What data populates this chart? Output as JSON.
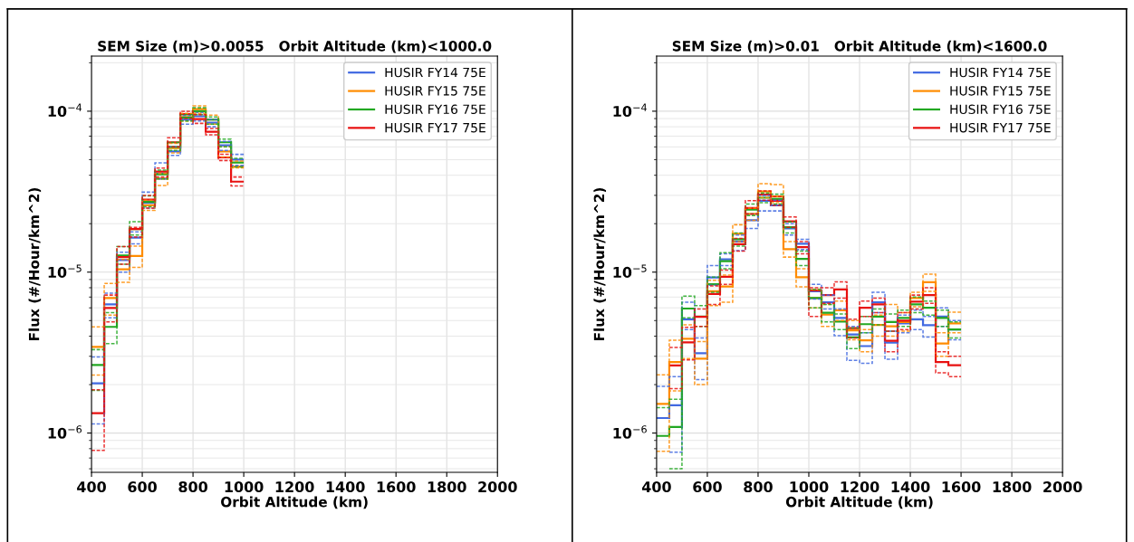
{
  "chart_data": [
    {
      "type": "step",
      "title": "SEM Size (m)>0.0055   Orbit Altitude (km)<1000.0",
      "xlabel": "Orbit Altitude (km)",
      "ylabel": "Flux (#/Hour/km^2)",
      "x": [
        400,
        450,
        500,
        550,
        600,
        650,
        700,
        750,
        800,
        850,
        900,
        950,
        1000
      ],
      "series": [
        {
          "name": "HUSIR FY14 75E",
          "color": "#4169e1",
          "line_style": "solid",
          "values": [
            2.04e-06,
            6.3e-06,
            1.19e-05,
            1.64e-05,
            2.7e-05,
            4.1e-05,
            5.62e-05,
            8.86e-05,
            9.3e-05,
            8.48e-05,
            6.14e-05,
            5e-05,
            5e-05
          ]
        },
        {
          "name": "HUSIR FY15 75E",
          "color": "#ff8c00",
          "line_style": "solid",
          "values": [
            3.43e-06,
            6.9e-06,
            1.04e-05,
            1.26e-05,
            2.6e-05,
            3.81e-05,
            5.9e-05,
            9.2e-05,
            0.000103,
            8.86e-05,
            5.62e-05,
            4.53e-05,
            4.53e-05
          ]
        },
        {
          "name": "HUSIR FY16 75E",
          "color": "#22a822",
          "line_style": "solid",
          "values": [
            2.65e-06,
            4.57e-06,
            1.27e-05,
            1.85e-05,
            2.73e-05,
            4.05e-05,
            6e-05,
            9.1e-05,
            0.0001,
            8.86e-05,
            6.41e-05,
            4.8e-05,
            4.8e-05
          ]
        },
        {
          "name": "HUSIR FY17 75E",
          "color": "#e81010",
          "line_style": "solid",
          "values": [
            1.33e-06,
            5.98e-06,
            1.24e-05,
            1.85e-05,
            2.82e-05,
            4.21e-05,
            6.41e-05,
            9.58e-05,
            8.94e-05,
            7.45e-05,
            5.16e-05,
            3.65e-05,
            3.65e-05
          ]
        },
        {
          "color": "#4169e1",
          "line_style": "dashed",
          "values": [
            1.14e-06,
            5.2e-06,
            1e-05,
            1.5e-05,
            2.5e-05,
            3.8e-05,
            5.32e-05,
            8.3e-05,
            8.7e-05,
            8e-05,
            5.7e-05,
            4.6e-05,
            4.6e-05
          ]
        },
        {
          "color": "#4169e1",
          "line_style": "dashed",
          "values": [
            2.97e-06,
            7.4e-06,
            1.33e-05,
            1.78e-05,
            3.14e-05,
            4.77e-05,
            6e-05,
            9.4e-05,
            9.8e-05,
            8.9e-05,
            6.5e-05,
            5.39e-05,
            5.39e-05
          ]
        },
        {
          "color": "#ff8c00",
          "line_style": "dashed",
          "values": [
            2.29e-06,
            5.4e-06,
            8.65e-06,
            1.07e-05,
            2.42e-05,
            3.45e-05,
            5.5e-05,
            8.7e-05,
            9.7e-05,
            8.3e-05,
            5.2e-05,
            4.45e-05,
            4.45e-05
          ]
        },
        {
          "color": "#ff8c00",
          "line_style": "dashed",
          "values": [
            4.57e-06,
            8.5e-06,
            1.2e-05,
            1.45e-05,
            2.8e-05,
            4.1e-05,
            6.3e-05,
            9.7e-05,
            0.000108,
            9.45e-05,
            6e-05,
            4.9e-05,
            4.9e-05
          ]
        },
        {
          "color": "#22a822",
          "line_style": "dashed",
          "values": [
            1.84e-06,
            3.6e-06,
            1.12e-05,
            1.7e-05,
            2.55e-05,
            3.8e-05,
            5.7e-05,
            8.7e-05,
            9.5e-05,
            8.3e-05,
            6e-05,
            4.5e-05,
            4.5e-05
          ]
        },
        {
          "color": "#22a822",
          "line_style": "dashed",
          "values": [
            3.3e-06,
            5.6e-06,
            1.44e-05,
            2.06e-05,
            2.98e-05,
            4.3e-05,
            6.4e-05,
            9.5e-05,
            0.000105,
            9.2e-05,
            6.7e-05,
            5.1e-05,
            5.1e-05
          ]
        },
        {
          "color": "#e81010",
          "line_style": "dashed",
          "values": [
            7.8e-07,
            4.9e-06,
            1.12e-05,
            1.65e-05,
            2.5e-05,
            3.9e-05,
            6e-05,
            9e-05,
            8.4e-05,
            7.14e-05,
            4.94e-05,
            3.43e-05,
            3.43e-05
          ]
        },
        {
          "color": "#e81010",
          "line_style": "dashed",
          "values": [
            1.86e-06,
            7.2e-06,
            1.44e-05,
            1.9e-05,
            3e-05,
            4.43e-05,
            6.84e-05,
            0.0001,
            9.5e-05,
            7.8e-05,
            5.4e-05,
            3.9e-05,
            3.9e-05
          ]
        }
      ],
      "xlim": [
        400,
        2000
      ],
      "xticks": [
        400,
        600,
        800,
        1000,
        1200,
        1400,
        1600,
        1800,
        2000
      ],
      "ylim": [
        5.7e-07,
        0.00022
      ],
      "yticks": [
        {
          "value": 1e-06,
          "label": "10$^{−6}$"
        },
        {
          "value": 1e-05,
          "label": "10$^{−5}$"
        },
        {
          "value": 0.0001,
          "label": "10$^{−4}$"
        }
      ],
      "log": "y",
      "grid": true,
      "legend": "top right"
    },
    {
      "type": "step",
      "title": "SEM Size (m)>0.01   Orbit Altitude (km)<1600.0",
      "xlabel": "Orbit Altitude (km)",
      "ylabel": "Flux (#/Hour/km^2)",
      "x": [
        400,
        450,
        500,
        550,
        600,
        650,
        700,
        750,
        800,
        850,
        900,
        950,
        1000,
        1050,
        1100,
        1150,
        1200,
        1250,
        1300,
        1350,
        1400,
        1450,
        1500,
        1550,
        1600
      ],
      "series": [
        {
          "name": "HUSIR FY14 75E",
          "color": "#4169e1",
          "line_style": "solid",
          "values": [
            1.24e-06,
            1.49e-06,
            5.1e-06,
            3.13e-06,
            9.27e-06,
            1.2e-05,
            1.55e-05,
            2.1e-05,
            2.78e-05,
            2.6e-05,
            1.87e-05,
            1.5e-05,
            7.6e-06,
            6.5e-06,
            5.2e-06,
            4.1e-06,
            3.47e-06,
            6.5e-06,
            3.65e-06,
            4.8e-06,
            5.1e-06,
            4.68e-06,
            5.3e-06,
            4.4e-06,
            4.4e-06
          ]
        },
        {
          "name": "HUSIR FY15 75E",
          "color": "#ff8c00",
          "line_style": "solid",
          "values": [
            1.52e-06,
            2.76e-06,
            3.85e-06,
            2.9e-06,
            7.6e-06,
            8.15e-06,
            1.73e-05,
            2.3e-05,
            3.17e-05,
            2.95e-05,
            1.39e-05,
            9.3e-06,
            6.9e-06,
            5.45e-06,
            5.8e-06,
            4.35e-06,
            3.77e-06,
            4.7e-06,
            4.6e-06,
            4.9e-06,
            6.9e-06,
            8.65e-06,
            3.6e-06,
            4.8e-06,
            4.8e-06
          ]
        },
        {
          "name": "HUSIR FY16 75E",
          "color": "#22a822",
          "line_style": "solid",
          "values": [
            9.6e-07,
            1.09e-06,
            5.94e-06,
            5.3e-06,
            8.4e-06,
            1.17e-05,
            1.6e-05,
            2.45e-05,
            2.9e-05,
            2.85e-05,
            1.9e-05,
            1.21e-05,
            6.9e-06,
            5.6e-06,
            4.93e-06,
            3.93e-06,
            4.75e-06,
            5.3e-06,
            4.9e-06,
            5.2e-06,
            6.3e-06,
            6e-06,
            5.2e-06,
            4.4e-06,
            4.4e-06
          ]
        },
        {
          "name": "HUSIR FY17 75E",
          "color": "#e81010",
          "line_style": "solid",
          "values": [
            null,
            2.63e-06,
            3.66e-06,
            5.28e-06,
            7.31e-06,
            9.35e-06,
            1.49e-05,
            2.5e-05,
            3.03e-05,
            2.78e-05,
            2.07e-05,
            1.43e-05,
            7.7e-06,
            7.2e-06,
            7.8e-06,
            4.49e-06,
            6e-06,
            6.3e-06,
            3.74e-06,
            5e-06,
            6.56e-06,
            7.2e-06,
            2.76e-06,
            2.64e-06,
            2.64e-06
          ]
        },
        {
          "color": "#4169e1",
          "line_style": "dashed",
          "values": [
            null,
            7.6e-07,
            4.4e-06,
            2.15e-06,
            8.3e-06,
            1.1e-05,
            1.36e-05,
            1.87e-05,
            2.4e-05,
            2.4e-05,
            1.7e-05,
            1.38e-05,
            6.8e-06,
            5.9e-06,
            4.03e-06,
            2.83e-06,
            2.71e-06,
            5.6e-06,
            2.88e-06,
            4.2e-06,
            4.4e-06,
            3.95e-06,
            4.6e-06,
            3.8e-06,
            3.8e-06
          ]
        },
        {
          "color": "#4169e1",
          "line_style": "dashed",
          "values": [
            1.95e-06,
            2.24e-06,
            6.5e-06,
            3.9e-06,
            1.1e-05,
            1.3e-05,
            1.7e-05,
            2.3e-05,
            3e-05,
            2.8e-05,
            2e-05,
            1.6e-05,
            8.4e-06,
            7.2e-06,
            5.9e-06,
            4.6e-06,
            4.2e-06,
            7.5e-06,
            4.3e-06,
            5.4e-06,
            5.8e-06,
            5.3e-06,
            6e-06,
            5e-06,
            5e-06
          ]
        },
        {
          "color": "#ff8c00",
          "line_style": "dashed",
          "values": [
            7.7e-07,
            1.83e-06,
            2.9e-06,
            2e-06,
            6.2e-06,
            6.5e-06,
            1.55e-05,
            2.1e-05,
            2.9e-05,
            2.7e-05,
            1.24e-05,
            8.1e-06,
            6e-06,
            4.6e-06,
            5e-06,
            3.8e-06,
            3.2e-06,
            4e-06,
            4e-06,
            4.3e-06,
            6.1e-06,
            7.6e-06,
            3e-06,
            4.2e-06,
            4.2e-06
          ]
        },
        {
          "color": "#ff8c00",
          "line_style": "dashed",
          "values": [
            2.3e-06,
            3.78e-06,
            4.7e-06,
            3.7e-06,
            8.9e-06,
            9.6e-06,
            1.97e-05,
            2.5e-05,
            3.55e-05,
            3.5e-05,
            1.55e-05,
            1.05e-05,
            7.8e-06,
            6.3e-06,
            6.6e-06,
            5e-06,
            4.4e-06,
            5.4e-06,
            6.3e-06,
            5.6e-06,
            7.5e-06,
            9.7e-06,
            4.2e-06,
            5.64e-06,
            5.64e-06
          ]
        },
        {
          "color": "#22a822",
          "line_style": "dashed",
          "values": [
            null,
            6e-07,
            5.2e-06,
            4.6e-06,
            7.5e-06,
            1.05e-05,
            1.45e-05,
            2.25e-05,
            2.7e-05,
            2.65e-05,
            1.75e-05,
            1.1e-05,
            6e-06,
            4.9e-06,
            4.4e-06,
            3.35e-06,
            4.2e-06,
            4.7e-06,
            4.3e-06,
            4.6e-06,
            5.6e-06,
            5.4e-06,
            4.6e-06,
            3.9e-06,
            3.9e-06
          ]
        },
        {
          "color": "#22a822",
          "line_style": "dashed",
          "values": [
            1.44e-06,
            1.62e-06,
            7.1e-06,
            6.2e-06,
            9.3e-06,
            1.32e-05,
            1.75e-05,
            2.65e-05,
            3.1e-05,
            3.05e-05,
            2.05e-05,
            1.35e-05,
            7.8e-06,
            6.3e-06,
            5.5e-06,
            4.5e-06,
            5.3e-06,
            5.9e-06,
            5.5e-06,
            5.8e-06,
            7e-06,
            6.6e-06,
            5.8e-06,
            4.9e-06,
            4.9e-06
          ]
        },
        {
          "color": "#e81010",
          "line_style": "dashed",
          "values": [
            null,
            1.89e-06,
            2.85e-06,
            4.6e-06,
            6.3e-06,
            8.4e-06,
            1.35e-05,
            2.3e-05,
            2.8e-05,
            2.6e-05,
            1.9e-05,
            1.3e-05,
            5.3e-06,
            6.4e-06,
            6.9e-06,
            3.9e-06,
            5.3e-06,
            5.6e-06,
            3.2e-06,
            4.4e-06,
            5.9e-06,
            6.4e-06,
            2.37e-06,
            2.24e-06,
            2.24e-06
          ]
        },
        {
          "color": "#e81010",
          "line_style": "dashed",
          "values": [
            null,
            3.4e-06,
            4.54e-06,
            5.9e-06,
            8.2e-06,
            1.03e-05,
            1.62e-05,
            2.78e-05,
            3.2e-05,
            2.95e-05,
            2.2e-05,
            1.55e-05,
            8e-06,
            8e-06,
            8.7e-06,
            5.1e-06,
            6.6e-06,
            6.9e-06,
            4.3e-06,
            5.6e-06,
            7.2e-06,
            8e-06,
            3.2e-06,
            3e-06,
            3e-06
          ]
        }
      ],
      "xlim": [
        400,
        2000
      ],
      "xticks": [
        400,
        600,
        800,
        1000,
        1200,
        1400,
        1600,
        1800,
        2000
      ],
      "ylim": [
        5.7e-07,
        0.00022
      ],
      "yticks": [
        {
          "value": 1e-06,
          "label": "10$^{−6}$"
        },
        {
          "value": 1e-05,
          "label": "10$^{−5}$"
        },
        {
          "value": 0.0001,
          "label": "10$^{−4}$"
        }
      ],
      "log": "y",
      "grid": true,
      "legend": "top right"
    }
  ]
}
